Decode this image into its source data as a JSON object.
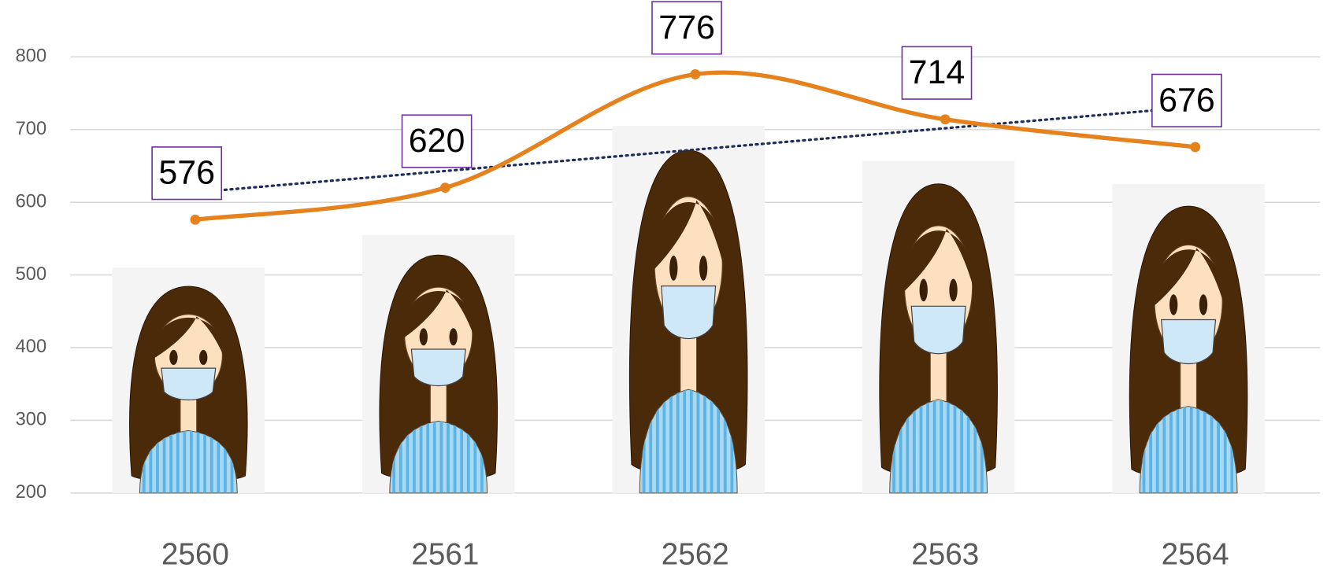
{
  "chart_data": {
    "type": "combo",
    "categories": [
      "2560",
      "2561",
      "2562",
      "2563",
      "2564"
    ],
    "series": [
      {
        "type": "bar",
        "color": "#f4f4f4",
        "values": [
          510,
          555,
          705,
          657,
          625
        ]
      },
      {
        "type": "line",
        "color": "#e6821e",
        "smooth": true,
        "values": [
          576,
          620,
          776,
          714,
          676
        ],
        "trendline": {
          "type": "linear",
          "color": "#1f2d5c"
        }
      }
    ],
    "ylim": [
      200,
      800
    ],
    "yticks": [
      200,
      300,
      400,
      500,
      600,
      700,
      800
    ],
    "grid": true
  }
}
